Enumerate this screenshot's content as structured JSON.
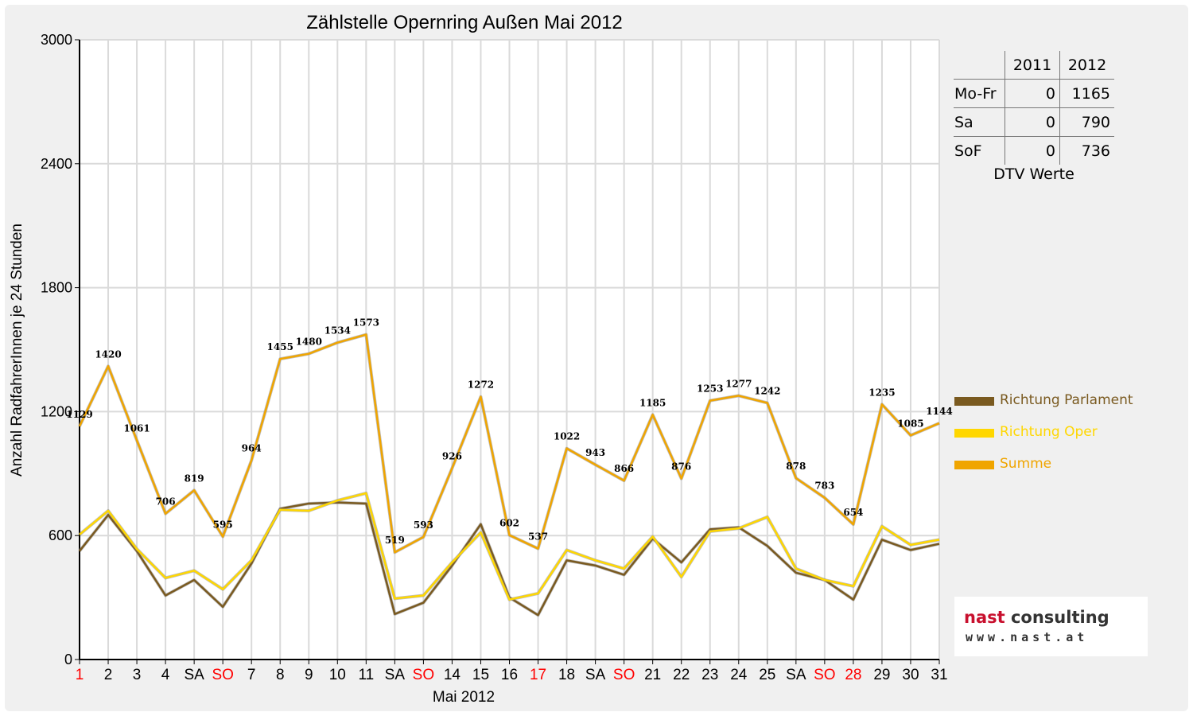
{
  "chart_data": {
    "type": "line",
    "title": "Zählstelle Opernring Außen Mai 2012",
    "xlabel": "Mai 2012",
    "ylabel": "Anzahl RadfahrerInnen je 24 Stunden",
    "ylim": [
      0,
      3000
    ],
    "y_ticks": [
      "0",
      "600",
      "1200",
      "1800",
      "2400",
      "3000"
    ],
    "grid": true,
    "categories": [
      "1",
      "2",
      "3",
      "4",
      "SA",
      "SO",
      "7",
      "8",
      "9",
      "10",
      "11",
      "SA",
      "SO",
      "14",
      "15",
      "16",
      "17",
      "18",
      "SA",
      "SO",
      "21",
      "22",
      "23",
      "24",
      "25",
      "SA",
      "SO",
      "28",
      "29",
      "30",
      "31"
    ],
    "holiday_flags": [
      true,
      false,
      false,
      false,
      false,
      true,
      false,
      false,
      false,
      false,
      false,
      false,
      true,
      false,
      false,
      false,
      true,
      false,
      false,
      true,
      false,
      false,
      false,
      false,
      false,
      false,
      true,
      true,
      false,
      false,
      false
    ],
    "series": [
      {
        "name": "Richtung Parlament",
        "color": "#7a5a20",
        "values": [
          525,
          700,
          525,
          310,
          385,
          255,
          465,
          730,
          755,
          760,
          755,
          220,
          275,
          455,
          655,
          300,
          215,
          480,
          455,
          410,
          585,
          470,
          630,
          640,
          550,
          420,
          385,
          290,
          580,
          530,
          560
        ]
      },
      {
        "name": "Richtung Oper",
        "color": "#ffd700",
        "values": [
          605,
          720,
          535,
          395,
          430,
          340,
          480,
          725,
          720,
          770,
          805,
          295,
          310,
          470,
          615,
          290,
          320,
          530,
          480,
          440,
          595,
          400,
          620,
          635,
          690,
          440,
          385,
          355,
          645,
          555,
          580
        ]
      },
      {
        "name": "Summe",
        "color": "#f0a500",
        "values": [
          1129,
          1420,
          1061,
          706,
          819,
          595,
          964,
          1455,
          1480,
          1534,
          1573,
          519,
          593,
          926,
          1272,
          602,
          537,
          1022,
          943,
          866,
          1185,
          876,
          1253,
          1277,
          1242,
          878,
          783,
          654,
          1235,
          1085,
          1144
        ],
        "data_labels": [
          "1129",
          "1420",
          "1061",
          "706",
          "819",
          "595",
          "964",
          "1455",
          "1480",
          "1534",
          "1573",
          "519",
          "593",
          "926",
          "1272",
          "602",
          "537",
          "1022",
          "943",
          "866",
          "1185",
          "876",
          "1253",
          "1277",
          "1242",
          "878",
          "783",
          "654",
          "1235",
          "1085",
          "1144"
        ]
      }
    ],
    "legend_position": "right"
  },
  "holiday_color": "#ff0000",
  "dtv": {
    "col_2011": "2011",
    "col_2012": "2012",
    "rows": [
      {
        "label": "Mo-Fr",
        "v2011": "0",
        "v2012": "1165"
      },
      {
        "label": "Sa",
        "v2011": "0",
        "v2012": "790"
      },
      {
        "label": "SoF",
        "v2011": "0",
        "v2012": "736"
      }
    ],
    "caption": "DTV Werte"
  },
  "logo": {
    "word1": "nast",
    "word2": " consulting",
    "url": "www.nast.at"
  }
}
